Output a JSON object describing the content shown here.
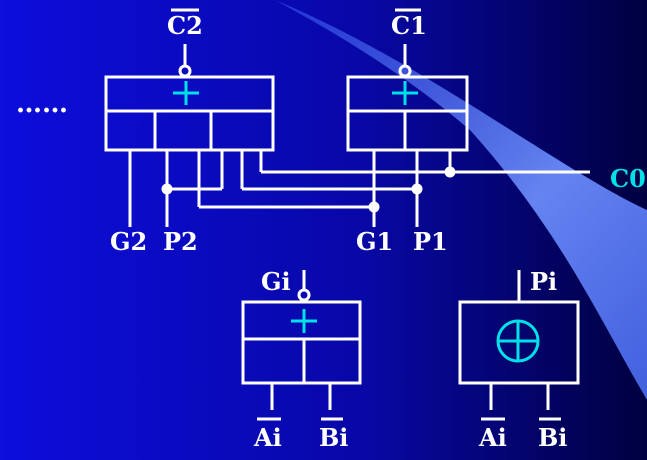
{
  "colors": {
    "background_left": "#0d0ddc",
    "background_right": "#000040",
    "light_beam": "#5a7af0",
    "line": "#ffffff",
    "plus_symbol": "#00e0e8",
    "c0_label": "#00e0e8"
  },
  "diagram": {
    "ellipsis": "……",
    "top_left_block": {
      "output_label": "C2",
      "output_overbar": true,
      "symbol": "+",
      "input_labels": [
        "G2",
        "P2"
      ]
    },
    "top_right_block": {
      "output_label": "C1",
      "output_overbar": true,
      "symbol": "+",
      "input_labels": [
        "G1",
        "P1"
      ]
    },
    "carry_in_label": "C0",
    "gi_block": {
      "output_label": "Gi",
      "symbol": "+",
      "input_labels": [
        "Ai",
        "Bi"
      ],
      "inputs_overbar": true
    },
    "pi_block": {
      "output_label": "Pi",
      "symbol": "⊕",
      "input_labels": [
        "Ai",
        "Bi"
      ],
      "inputs_overbar": true
    }
  }
}
